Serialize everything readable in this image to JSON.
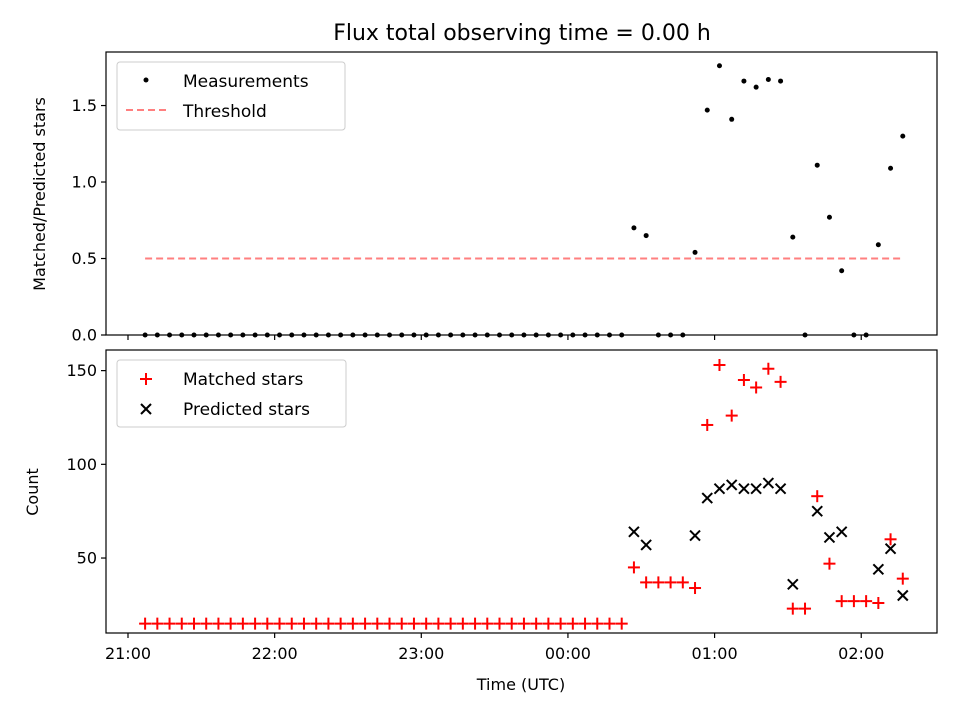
{
  "chart_data": [
    {
      "type": "scatter",
      "title": "Flux total observing time = 0.00 h",
      "xlabel": "",
      "ylabel": "Matched/Predicted stars",
      "x_axis": "time_utc",
      "xlim": [
        "20:51",
        "02:31"
      ],
      "ylim": [
        0,
        1.85
      ],
      "yticks": [
        0.0,
        0.5,
        1.0,
        1.5
      ],
      "ytick_labels": [
        "0.0",
        "0.5",
        "1.0",
        "1.5"
      ],
      "legend_position": "top-left",
      "series": [
        {
          "name": "Measurements",
          "marker": "dot",
          "color": "#000000",
          "points": [
            [
              "21:07",
              0
            ],
            [
              "21:12",
              0
            ],
            [
              "21:17",
              0
            ],
            [
              "21:22",
              0
            ],
            [
              "21:27",
              0
            ],
            [
              "21:32",
              0
            ],
            [
              "21:37",
              0
            ],
            [
              "21:42",
              0
            ],
            [
              "21:47",
              0
            ],
            [
              "21:52",
              0
            ],
            [
              "21:57",
              0
            ],
            [
              "22:02",
              0
            ],
            [
              "22:07",
              0
            ],
            [
              "22:12",
              0
            ],
            [
              "22:17",
              0
            ],
            [
              "22:22",
              0
            ],
            [
              "22:27",
              0
            ],
            [
              "22:32",
              0
            ],
            [
              "22:37",
              0
            ],
            [
              "22:42",
              0
            ],
            [
              "22:47",
              0
            ],
            [
              "22:52",
              0
            ],
            [
              "22:57",
              0
            ],
            [
              "23:02",
              0
            ],
            [
              "23:07",
              0
            ],
            [
              "23:12",
              0
            ],
            [
              "23:17",
              0
            ],
            [
              "23:22",
              0
            ],
            [
              "23:27",
              0
            ],
            [
              "23:32",
              0
            ],
            [
              "23:37",
              0
            ],
            [
              "23:42",
              0
            ],
            [
              "23:47",
              0
            ],
            [
              "23:52",
              0
            ],
            [
              "23:57",
              0
            ],
            [
              "00:02",
              0
            ],
            [
              "00:07",
              0
            ],
            [
              "00:12",
              0
            ],
            [
              "00:17",
              0
            ],
            [
              "00:22",
              0
            ],
            [
              "00:27",
              0.7
            ],
            [
              "00:32",
              0.65
            ],
            [
              "00:37",
              0
            ],
            [
              "00:42",
              0
            ],
            [
              "00:47",
              0
            ],
            [
              "00:52",
              0.54
            ],
            [
              "00:57",
              1.47
            ],
            [
              "01:02",
              1.76
            ],
            [
              "01:07",
              1.41
            ],
            [
              "01:12",
              1.66
            ],
            [
              "01:17",
              1.62
            ],
            [
              "01:22",
              1.67
            ],
            [
              "01:27",
              1.66
            ],
            [
              "01:32",
              0.64
            ],
            [
              "01:37",
              0
            ],
            [
              "01:42",
              1.11
            ],
            [
              "01:47",
              0.77
            ],
            [
              "01:52",
              0.42
            ],
            [
              "01:57",
              0
            ],
            [
              "02:02",
              0
            ],
            [
              "02:07",
              0.59
            ],
            [
              "02:12",
              1.09
            ],
            [
              "02:17",
              1.3
            ]
          ]
        },
        {
          "name": "Threshold",
          "type": "line",
          "style": "dashed",
          "color": "#ff7f7f",
          "points": [
            [
              "21:07",
              0.5
            ],
            [
              "02:17",
              0.5
            ]
          ]
        }
      ]
    },
    {
      "type": "scatter",
      "title": "",
      "xlabel": "Time (UTC)",
      "ylabel": "Count",
      "x_axis": "time_utc",
      "xlim": [
        "20:51",
        "02:31"
      ],
      "ylim": [
        10,
        161
      ],
      "yticks": [
        50,
        100,
        150
      ],
      "ytick_labels": [
        "50",
        "100",
        "150"
      ],
      "xticks": [
        "21:00",
        "22:00",
        "23:00",
        "00:00",
        "01:00",
        "02:00"
      ],
      "legend_position": "top-left",
      "series": [
        {
          "name": "Matched stars",
          "marker": "plus",
          "color": "#ff0000",
          "points": [
            [
              "21:07",
              15
            ],
            [
              "21:12",
              15
            ],
            [
              "21:17",
              15
            ],
            [
              "21:22",
              15
            ],
            [
              "21:27",
              15
            ],
            [
              "21:32",
              15
            ],
            [
              "21:37",
              15
            ],
            [
              "21:42",
              15
            ],
            [
              "21:47",
              15
            ],
            [
              "21:52",
              15
            ],
            [
              "21:57",
              15
            ],
            [
              "22:02",
              15
            ],
            [
              "22:07",
              15
            ],
            [
              "22:12",
              15
            ],
            [
              "22:17",
              15
            ],
            [
              "22:22",
              15
            ],
            [
              "22:27",
              15
            ],
            [
              "22:32",
              15
            ],
            [
              "22:37",
              15
            ],
            [
              "22:42",
              15
            ],
            [
              "22:47",
              15
            ],
            [
              "22:52",
              15
            ],
            [
              "22:57",
              15
            ],
            [
              "23:02",
              15
            ],
            [
              "23:07",
              15
            ],
            [
              "23:12",
              15
            ],
            [
              "23:17",
              15
            ],
            [
              "23:22",
              15
            ],
            [
              "23:27",
              15
            ],
            [
              "23:32",
              15
            ],
            [
              "23:37",
              15
            ],
            [
              "23:42",
              15
            ],
            [
              "23:47",
              15
            ],
            [
              "23:52",
              15
            ],
            [
              "23:57",
              15
            ],
            [
              "00:02",
              15
            ],
            [
              "00:07",
              15
            ],
            [
              "00:12",
              15
            ],
            [
              "00:17",
              15
            ],
            [
              "00:22",
              15
            ],
            [
              "00:27",
              45
            ],
            [
              "00:32",
              37
            ],
            [
              "00:37",
              37
            ],
            [
              "00:42",
              37
            ],
            [
              "00:47",
              37
            ],
            [
              "00:52",
              34
            ],
            [
              "00:57",
              121
            ],
            [
              "01:02",
              153
            ],
            [
              "01:07",
              126
            ],
            [
              "01:12",
              145
            ],
            [
              "01:17",
              141
            ],
            [
              "01:22",
              151
            ],
            [
              "01:27",
              144
            ],
            [
              "01:32",
              23
            ],
            [
              "01:37",
              23
            ],
            [
              "01:42",
              83
            ],
            [
              "01:47",
              47
            ],
            [
              "01:52",
              27
            ],
            [
              "01:57",
              27
            ],
            [
              "02:02",
              27
            ],
            [
              "02:07",
              26
            ],
            [
              "02:12",
              60
            ],
            [
              "02:17",
              39
            ]
          ]
        },
        {
          "name": "Predicted stars",
          "marker": "x",
          "color": "#000000",
          "points": [
            [
              "00:27",
              64
            ],
            [
              "00:32",
              57
            ],
            [
              "00:52",
              62
            ],
            [
              "00:57",
              82
            ],
            [
              "01:02",
              87
            ],
            [
              "01:07",
              89
            ],
            [
              "01:12",
              87
            ],
            [
              "01:17",
              87
            ],
            [
              "01:22",
              90
            ],
            [
              "01:27",
              87
            ],
            [
              "01:32",
              36
            ],
            [
              "01:42",
              75
            ],
            [
              "01:47",
              61
            ],
            [
              "01:52",
              64
            ],
            [
              "02:07",
              44
            ],
            [
              "02:12",
              55
            ],
            [
              "02:17",
              30
            ]
          ]
        }
      ]
    }
  ]
}
